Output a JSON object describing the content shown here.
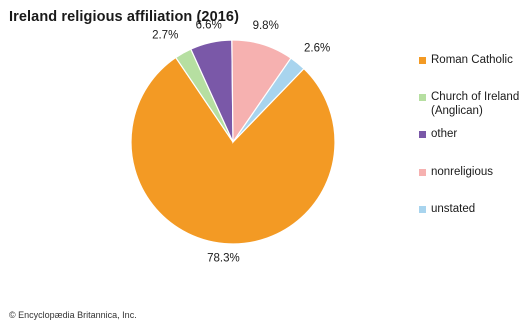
{
  "chart_data": {
    "type": "pie",
    "title": "Ireland religious affiliation (2016)",
    "slices": [
      {
        "label": "Roman Catholic",
        "value": 78.3,
        "value_label": "78.3%",
        "color": "#f39a24"
      },
      {
        "label": "Church of Ireland (Anglican)",
        "value": 2.7,
        "value_label": "2.7%",
        "color": "#b6dfa1"
      },
      {
        "label": "other",
        "value": 6.6,
        "value_label": "6.6%",
        "color": "#7a58a8"
      },
      {
        "label": "nonreligious",
        "value": 9.8,
        "value_label": "9.8%",
        "color": "#f6b1b0"
      },
      {
        "label": "unstated",
        "value": 2.6,
        "value_label": "2.6%",
        "color": "#a8d4ee"
      }
    ],
    "legend": {
      "placement": "right",
      "items": [
        {
          "lines": [
            "Roman Catholic"
          ]
        },
        {
          "lines": [
            "Church of Ireland",
            "(Anglican)"
          ]
        },
        {
          "lines": [
            "other"
          ]
        },
        {
          "lines": [
            "nonreligious"
          ]
        },
        {
          "lines": [
            "unstated"
          ]
        }
      ]
    }
  },
  "credit": "© Encyclopædia Britannica, Inc."
}
